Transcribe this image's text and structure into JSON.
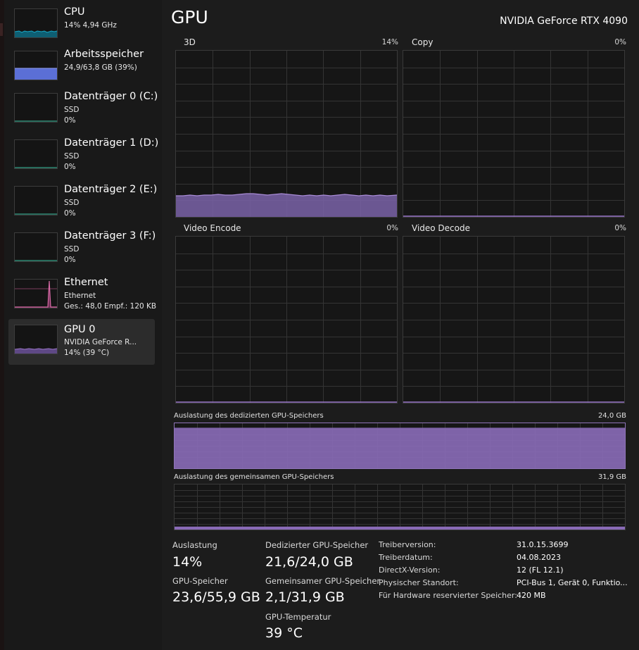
{
  "sidebar": {
    "items": [
      {
        "title": "CPU",
        "line1": "14%  4,94 GHz",
        "line2": "",
        "color": "#17a8c7"
      },
      {
        "title": "Arbeitsspeicher",
        "line1": "24,9/63,8 GB (39%)",
        "line2": "",
        "color": "#5b6fd6"
      },
      {
        "title": "Datenträger 0 (C:)",
        "line1": "SSD",
        "line2": "0%",
        "color": "#2e8a74"
      },
      {
        "title": "Datenträger 1 (D:)",
        "line1": "SSD",
        "line2": "0%",
        "color": "#2e8a74"
      },
      {
        "title": "Datenträger 2 (E:)",
        "line1": "SSD",
        "line2": "0%",
        "color": "#2e8a74"
      },
      {
        "title": "Datenträger 3 (F:)",
        "line1": "SSD",
        "line2": "0%",
        "color": "#2e8a74"
      },
      {
        "title": "Ethernet",
        "line1": "Ethernet",
        "line2": "Ges.: 48,0  Empf.: 120 KB",
        "color": "#d86aa6"
      },
      {
        "title": "GPU 0",
        "line1": "NVIDIA GeForce R...",
        "line2": "14%  (39 °C)",
        "color": "#9a74c8"
      }
    ]
  },
  "main": {
    "title": "GPU",
    "device": "NVIDIA GeForce RTX 4090",
    "engines": [
      {
        "label": "3D",
        "percent": "14%"
      },
      {
        "label": "Copy",
        "percent": "0%"
      },
      {
        "label": "Video Encode",
        "percent": "0%"
      },
      {
        "label": "Video Decode",
        "percent": "0%"
      }
    ],
    "dedicated": {
      "label": "Auslastung des dedizierten GPU-Speichers",
      "max": "24,0 GB"
    },
    "shared": {
      "label": "Auslastung des gemeinsamen GPU-Speichers",
      "max": "31,9 GB"
    }
  },
  "stats": {
    "auslastung_label": "Auslastung",
    "auslastung_value": "14%",
    "gpu_speicher_label": "GPU-Speicher",
    "gpu_speicher_value": "23,6/55,9 GB",
    "dedicated_label": "Dedizierter GPU-Speicher",
    "dedicated_value": "21,6/24,0 GB",
    "shared_label": "Gemeinsamer GPU-Speicher",
    "shared_value": "2,1/31,9 GB",
    "temp_label": "GPU-Temperatur",
    "temp_value": "39 °C"
  },
  "info": [
    {
      "key": "Treiberversion:",
      "value": "31.0.15.3699"
    },
    {
      "key": "Treiberdatum:",
      "value": "04.08.2023"
    },
    {
      "key": "DirectX-Version:",
      "value": "12 (FL 12.1)"
    },
    {
      "key": "Physischer Standort:",
      "value": "PCI-Bus 1, Gerät 0, Funktio..."
    },
    {
      "key": "Für Hardware reservierter Speicher:",
      "value": "420 MB"
    }
  ],
  "colors": {
    "gpu_line": "#9b78cc",
    "gpu_fill": "#8a6bb8",
    "grid": "#343434"
  },
  "usage": {
    "dedicated_fraction": 0.9,
    "shared_fraction": 0.066
  }
}
